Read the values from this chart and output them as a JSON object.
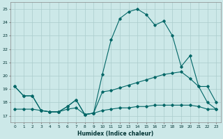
{
  "xlabel": "Humidex (Indice chaleur)",
  "bg_color": "#cce8e8",
  "grid_color": "#aacccc",
  "line_color": "#006666",
  "xlim": [
    -0.5,
    23.5
  ],
  "ylim": [
    16.5,
    25.5
  ],
  "xticks": [
    0,
    1,
    2,
    3,
    4,
    5,
    6,
    7,
    8,
    9,
    10,
    11,
    12,
    13,
    14,
    15,
    16,
    17,
    18,
    19,
    20,
    21,
    22,
    23
  ],
  "yticks": [
    17,
    18,
    19,
    20,
    21,
    22,
    23,
    24,
    25
  ],
  "line1": [
    19.2,
    18.5,
    18.5,
    17.4,
    17.3,
    17.3,
    17.7,
    18.2,
    17.1,
    17.2,
    20.1,
    22.7,
    24.3,
    24.8,
    25.0,
    24.6,
    23.8,
    24.1,
    23.0,
    20.7,
    21.5,
    19.2,
    19.2,
    18.0
  ],
  "line2": [
    19.2,
    18.5,
    18.5,
    17.4,
    17.3,
    17.3,
    17.7,
    18.2,
    17.1,
    17.2,
    18.8,
    18.9,
    19.1,
    19.3,
    19.5,
    19.7,
    19.9,
    20.1,
    20.2,
    20.3,
    19.8,
    19.2,
    18.0,
    17.5
  ],
  "line3": [
    17.5,
    17.5,
    17.5,
    17.4,
    17.3,
    17.3,
    17.5,
    17.6,
    17.1,
    17.2,
    17.4,
    17.5,
    17.6,
    17.6,
    17.7,
    17.7,
    17.8,
    17.8,
    17.8,
    17.8,
    17.8,
    17.7,
    17.5,
    17.5
  ]
}
